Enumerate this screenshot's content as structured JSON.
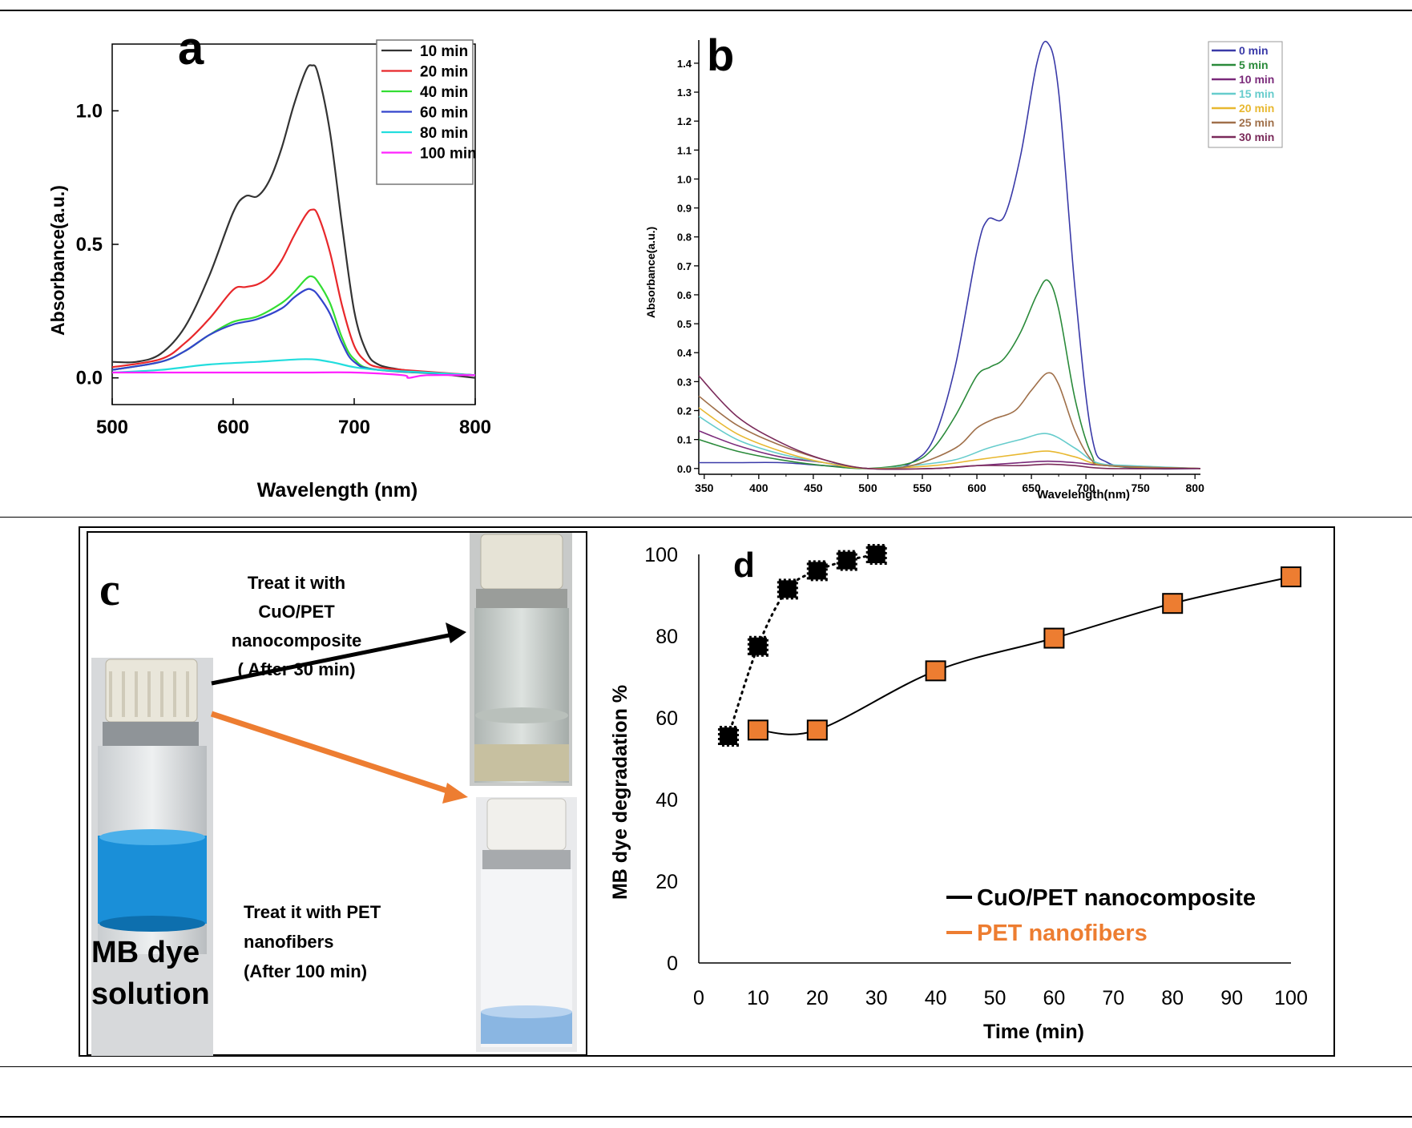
{
  "panels": {
    "a": {
      "letter": "a"
    },
    "b": {
      "letter": "b"
    },
    "c": {
      "letter": "c",
      "top_arrow_text": [
        "Treat it with",
        "CuO/PET",
        "nanocomposite",
        "( After 30 min)"
      ],
      "bottom_arrow_text": [
        "Treat it with PET",
        "nanofibers",
        "(After 100 min)"
      ],
      "sample_label": [
        "MB dye",
        "solution"
      ]
    },
    "d": {
      "letter": "d"
    }
  },
  "colors": {
    "a_10": "#333333",
    "a_20": "#e8282b",
    "a_40": "#33dd33",
    "a_60": "#3344cc",
    "a_80": "#22dddd",
    "a_100": "#ff22ff",
    "b_0": "#3a3aa8",
    "b_5": "#2a8a3a",
    "b_10": "#7a2a7a",
    "b_15": "#66cccc",
    "b_20": "#e8b830",
    "b_25": "#a0704a",
    "b_30": "#7a2a5a",
    "cuo": "#000000",
    "pet": "#ed7d31",
    "blue_dye": "#1a8fd8"
  },
  "chart_data": [
    {
      "id": "a",
      "type": "line",
      "title": "",
      "xlabel": "Wavelength (nm)",
      "ylabel": "Absorbance(a.u.)",
      "xlim": [
        500,
        800
      ],
      "ylim": [
        -0.1,
        1.25
      ],
      "x_ticks": [
        "500",
        "600",
        "700",
        "800"
      ],
      "y_ticks": [
        "0.0",
        "0.5",
        "1.0"
      ],
      "legend_position": "top-right",
      "series": [
        {
          "name": "10 min",
          "color_key": "a_10",
          "x": [
            500,
            520,
            540,
            560,
            580,
            600,
            610,
            620,
            630,
            640,
            650,
            660,
            665,
            670,
            680,
            690,
            700,
            710,
            720,
            740,
            760,
            780,
            800
          ],
          "y": [
            0.06,
            0.06,
            0.09,
            0.19,
            0.38,
            0.62,
            0.68,
            0.68,
            0.74,
            0.86,
            1.02,
            1.15,
            1.17,
            1.14,
            0.92,
            0.57,
            0.25,
            0.1,
            0.05,
            0.03,
            0.02,
            0.01,
            0.0
          ]
        },
        {
          "name": "20 min",
          "color_key": "a_20",
          "x": [
            500,
            540,
            560,
            580,
            600,
            610,
            620,
            630,
            640,
            650,
            660,
            665,
            670,
            680,
            690,
            700,
            710,
            720,
            740,
            800
          ],
          "y": [
            0.04,
            0.07,
            0.13,
            0.22,
            0.33,
            0.34,
            0.35,
            0.38,
            0.44,
            0.53,
            0.61,
            0.63,
            0.61,
            0.47,
            0.27,
            0.12,
            0.06,
            0.04,
            0.03,
            0.01
          ]
        },
        {
          "name": "40 min",
          "color_key": "a_40",
          "x": [
            500,
            540,
            560,
            580,
            600,
            620,
            640,
            650,
            660,
            665,
            670,
            680,
            690,
            700,
            720,
            800
          ],
          "y": [
            0.03,
            0.06,
            0.1,
            0.16,
            0.21,
            0.23,
            0.28,
            0.32,
            0.37,
            0.38,
            0.36,
            0.28,
            0.15,
            0.07,
            0.03,
            0.01
          ]
        },
        {
          "name": "60 min",
          "color_key": "a_60",
          "x": [
            500,
            540,
            560,
            580,
            600,
            620,
            640,
            650,
            660,
            665,
            670,
            680,
            690,
            700,
            720,
            800
          ],
          "y": [
            0.03,
            0.06,
            0.1,
            0.16,
            0.2,
            0.22,
            0.26,
            0.3,
            0.33,
            0.33,
            0.31,
            0.24,
            0.13,
            0.06,
            0.03,
            0.01
          ]
        },
        {
          "name": "80 min",
          "color_key": "a_80",
          "x": [
            500,
            540,
            580,
            620,
            660,
            680,
            700,
            720,
            760,
            800
          ],
          "y": [
            0.02,
            0.03,
            0.05,
            0.06,
            0.07,
            0.06,
            0.04,
            0.03,
            0.02,
            0.01
          ]
        },
        {
          "name": "100 min",
          "color_key": "a_100",
          "x": [
            500,
            540,
            580,
            620,
            660,
            700,
            740,
            745,
            760,
            800
          ],
          "y": [
            0.02,
            0.02,
            0.02,
            0.02,
            0.02,
            0.02,
            0.01,
            0.0,
            0.01,
            0.01
          ]
        }
      ]
    },
    {
      "id": "b",
      "type": "line",
      "title": "",
      "xlabel": "Wavelength(nm)",
      "ylabel": "Absorbance(a.u.)",
      "xlim": [
        345,
        805
      ],
      "ylim": [
        -0.02,
        1.48
      ],
      "x_ticks": [
        "350",
        "400",
        "450",
        "500",
        "550",
        "600",
        "650",
        "700",
        "750",
        "800"
      ],
      "y_ticks": [
        "0.0",
        "0.1",
        "0.2",
        "0.3",
        "0.4",
        "0.5",
        "0.6",
        "0.7",
        "0.8",
        "0.9",
        "1.0",
        "1.1",
        "1.2",
        "1.3",
        "1.4"
      ],
      "legend_position": "top-right",
      "series": [
        {
          "name": "0 min",
          "color_key": "b_0",
          "x": [
            345,
            380,
            420,
            460,
            500,
            520,
            540,
            560,
            580,
            600,
            610,
            625,
            640,
            655,
            665,
            675,
            690,
            705,
            720,
            760,
            805
          ],
          "y": [
            0.02,
            0.02,
            0.02,
            0.01,
            0.0,
            0.0,
            0.02,
            0.1,
            0.35,
            0.75,
            0.86,
            0.87,
            1.08,
            1.4,
            1.47,
            1.3,
            0.62,
            0.12,
            0.02,
            0.0,
            0.0
          ]
        },
        {
          "name": "5 min",
          "color_key": "b_5",
          "x": [
            345,
            380,
            420,
            460,
            500,
            540,
            560,
            580,
            600,
            612,
            625,
            640,
            655,
            665,
            675,
            690,
            705,
            720,
            805
          ],
          "y": [
            0.1,
            0.06,
            0.03,
            0.01,
            0.0,
            0.02,
            0.07,
            0.18,
            0.32,
            0.35,
            0.38,
            0.47,
            0.6,
            0.65,
            0.55,
            0.24,
            0.05,
            0.01,
            0.0
          ]
        },
        {
          "name": "10 min",
          "color_key": "b_10",
          "x": [
            345,
            380,
            420,
            460,
            500,
            560,
            600,
            640,
            665,
            690,
            720,
            805
          ],
          "y": [
            0.13,
            0.08,
            0.04,
            0.02,
            0.0,
            0.0,
            0.01,
            0.02,
            0.025,
            0.02,
            0.01,
            0.0
          ]
        },
        {
          "name": "15 min",
          "color_key": "b_15",
          "x": [
            345,
            380,
            420,
            460,
            500,
            540,
            580,
            610,
            640,
            665,
            690,
            710,
            740,
            805
          ],
          "y": [
            0.18,
            0.1,
            0.05,
            0.02,
            0.0,
            0.01,
            0.03,
            0.07,
            0.1,
            0.12,
            0.07,
            0.02,
            0.01,
            0.0
          ]
        },
        {
          "name": "20 min",
          "color_key": "b_20",
          "x": [
            345,
            380,
            420,
            460,
            500,
            560,
            600,
            640,
            665,
            690,
            720,
            805
          ],
          "y": [
            0.21,
            0.12,
            0.06,
            0.02,
            0.0,
            0.01,
            0.03,
            0.05,
            0.06,
            0.04,
            0.01,
            0.0
          ]
        },
        {
          "name": "25 min",
          "color_key": "b_25",
          "x": [
            345,
            380,
            420,
            460,
            500,
            540,
            580,
            600,
            615,
            635,
            650,
            665,
            675,
            690,
            705,
            720,
            805
          ],
          "y": [
            0.25,
            0.15,
            0.08,
            0.03,
            0.0,
            0.01,
            0.07,
            0.14,
            0.17,
            0.2,
            0.27,
            0.33,
            0.29,
            0.13,
            0.03,
            0.01,
            0.0
          ]
        },
        {
          "name": "30 min",
          "color_key": "b_30",
          "x": [
            345,
            380,
            420,
            460,
            500,
            560,
            600,
            640,
            665,
            690,
            720,
            805
          ],
          "y": [
            0.32,
            0.18,
            0.09,
            0.03,
            0.0,
            0.0,
            0.01,
            0.01,
            0.015,
            0.01,
            0.0,
            0.0
          ]
        }
      ]
    },
    {
      "id": "d",
      "type": "line",
      "title": "",
      "xlabel": "Time (min)",
      "ylabel": "MB dye degradation %",
      "xlim": [
        0,
        100
      ],
      "ylim": [
        0,
        100
      ],
      "x_ticks": [
        "0",
        "10",
        "20",
        "30",
        "40",
        "50",
        "60",
        "70",
        "80",
        "90",
        "100"
      ],
      "y_ticks": [
        "0",
        "20",
        "40",
        "60",
        "80",
        "100"
      ],
      "legend_position": "bottom-right",
      "series": [
        {
          "name": "CuO/PET nanocomposite",
          "color_key": "cuo",
          "style": "dotted",
          "x": [
            5,
            10,
            15,
            20,
            25,
            30
          ],
          "y": [
            55.5,
            77.5,
            91.5,
            96,
            98.5,
            100
          ]
        },
        {
          "name": "PET nanofibers",
          "color_key": "pet",
          "style": "solid",
          "x": [
            10,
            20,
            40,
            60,
            80,
            100
          ],
          "y": [
            57,
            57,
            71.5,
            79.5,
            88,
            94.5
          ]
        }
      ]
    }
  ]
}
